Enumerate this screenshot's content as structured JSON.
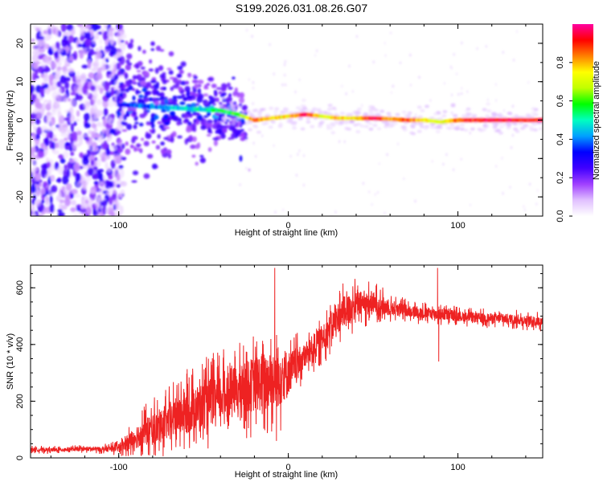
{
  "title": "S199.2026.031.08.26.G07",
  "chart_data": [
    {
      "type": "heatmap",
      "name": "spectrogram",
      "xlabel": "Height of straight line (km)",
      "ylabel": "Frequency (Hz)",
      "xlim": [
        -152,
        150
      ],
      "ylim": [
        -25,
        25
      ],
      "xticks": [
        -100,
        0,
        100
      ],
      "xtick_labels": [
        "-100",
        "0",
        "100"
      ],
      "yticks": [
        -20,
        -10,
        0,
        10,
        20
      ],
      "ytick_labels": [
        "-20",
        "-10",
        "0",
        "10",
        "20"
      ],
      "colorbar": {
        "label": "Normalized spectral amplitude",
        "range": [
          0,
          1
        ],
        "ticks": [
          0,
          0.2,
          0.4,
          0.6,
          0.8
        ],
        "tick_labels": [
          "0.0",
          "0.2",
          "0.4",
          "0.6",
          "0.8"
        ],
        "colors": [
          "#ffffff",
          "#e0c0ff",
          "#a040ff",
          "#4000ff",
          "#0000ff",
          "#00a0ff",
          "#00ffc0",
          "#00ff00",
          "#c0ff00",
          "#ffff00",
          "#ff8000",
          "#ff0000",
          "#ff00a0"
        ]
      },
      "ridge": {
        "x": [
          -100,
          -80,
          -60,
          -40,
          -30,
          -20,
          -10,
          0,
          10,
          20,
          30,
          40,
          50,
          60,
          70,
          80,
          90,
          100,
          110,
          120,
          130,
          140,
          150
        ],
        "freq": [
          4,
          3.5,
          3,
          2.5,
          1.5,
          0,
          0.5,
          1,
          1.5,
          1,
          0.5,
          0.5,
          0.5,
          0.3,
          0,
          0,
          -0.5,
          0,
          0,
          0,
          0,
          0,
          0
        ],
        "amplitude": [
          0.3,
          0.4,
          0.45,
          0.55,
          0.6,
          0.85,
          0.8,
          0.75,
          0.95,
          0.7,
          0.8,
          0.75,
          0.95,
          0.8,
          0.85,
          0.75,
          0.7,
          0.85,
          0.9,
          0.95,
          0.95,
          0.92,
          0.9
        ]
      }
    },
    {
      "type": "line",
      "name": "snr",
      "xlabel": "Height of straight line (km)",
      "ylabel": "SNR (10 * v/v)",
      "xlim": [
        -152,
        150
      ],
      "ylim": [
        0,
        680
      ],
      "xticks": [
        -100,
        0,
        100
      ],
      "xtick_labels": [
        "-100",
        "0",
        "100"
      ],
      "yticks": [
        0,
        200,
        400,
        600
      ],
      "ytick_labels": [
        "0",
        "200",
        "400",
        "600"
      ],
      "color": "#ee2222",
      "x": [
        -152,
        -140,
        -130,
        -120,
        -110,
        -100,
        -95,
        -90,
        -85,
        -80,
        -75,
        -70,
        -65,
        -60,
        -55,
        -50,
        -45,
        -40,
        -35,
        -30,
        -25,
        -20,
        -15,
        -10,
        -5,
        0,
        5,
        10,
        15,
        20,
        25,
        30,
        35,
        40,
        45,
        50,
        55,
        60,
        65,
        70,
        75,
        80,
        85,
        90,
        95,
        100,
        110,
        120,
        130,
        140,
        150
      ],
      "y": [
        30,
        28,
        30,
        32,
        30,
        35,
        50,
        75,
        90,
        100,
        110,
        130,
        150,
        160,
        175,
        185,
        200,
        215,
        230,
        240,
        250,
        260,
        270,
        280,
        290,
        300,
        330,
        360,
        390,
        420,
        460,
        500,
        520,
        540,
        545,
        545,
        535,
        530,
        525,
        520,
        515,
        510,
        510,
        505,
        505,
        500,
        495,
        492,
        490,
        485,
        480
      ],
      "amplitude": [
        10,
        10,
        10,
        10,
        12,
        20,
        40,
        60,
        70,
        80,
        80,
        90,
        100,
        110,
        110,
        120,
        120,
        120,
        120,
        120,
        130,
        140,
        150,
        150,
        160,
        110,
        80,
        60,
        70,
        70,
        70,
        80,
        80,
        70,
        60,
        60,
        50,
        40,
        35,
        30,
        30,
        30,
        30,
        30,
        30,
        25,
        25,
        25,
        25,
        25,
        25
      ],
      "spikes": [
        {
          "x": -8,
          "y": 670
        },
        {
          "x": -7,
          "y": 60
        },
        {
          "x": 88,
          "y": 670
        },
        {
          "x": 88.7,
          "y": 340
        }
      ]
    }
  ]
}
